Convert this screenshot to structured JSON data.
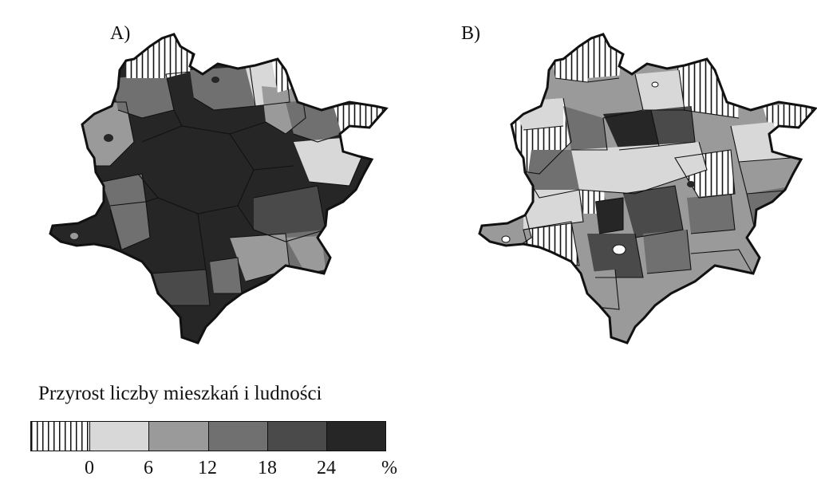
{
  "panels": {
    "a_label": "A)",
    "b_label": "B)"
  },
  "legend": {
    "title": "Przyrost liczby mieszkań i ludności",
    "classes": [
      {
        "pattern": "hatched",
        "color": "#ffffff"
      },
      {
        "color": "#d8d8d8"
      },
      {
        "color": "#9a9a9a"
      },
      {
        "color": "#707070"
      },
      {
        "color": "#4a4a4a"
      },
      {
        "color": "#262626"
      }
    ],
    "ticks": [
      "0",
      "6",
      "12",
      "18",
      "24"
    ],
    "unit": "%"
  },
  "colors": {
    "class1": "#d8d8d8",
    "class2": "#9a9a9a",
    "class3": "#707070",
    "class4": "#4a4a4a",
    "class5": "#262626",
    "outline": "#111111"
  }
}
